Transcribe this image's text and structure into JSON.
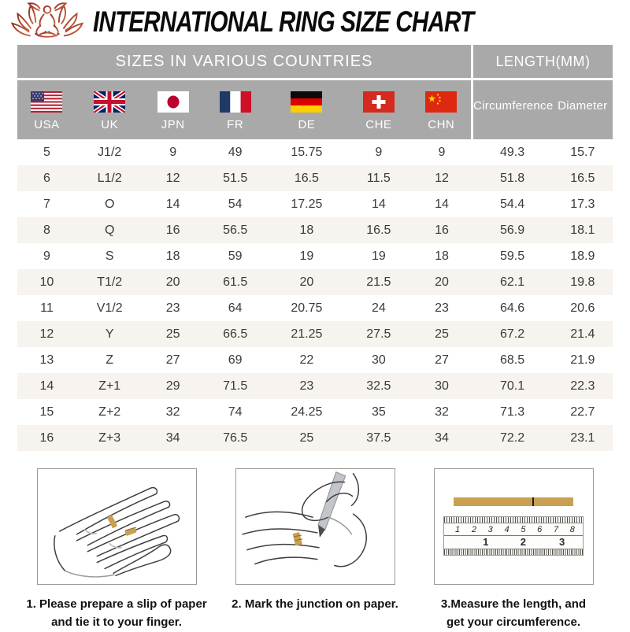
{
  "page": {
    "title": "INTERNATIONAL RING SIZE CHART"
  },
  "chart_data": {
    "type": "table",
    "title": "INTERNATIONAL RING SIZE CHART",
    "group_headers": {
      "countries": "SIZES IN VARIOUS COUNTRIES",
      "length": "LENGTH(MM)"
    },
    "columns": [
      "USA",
      "UK",
      "JPN",
      "FR",
      "DE",
      "CHE",
      "CHN",
      "Circumference",
      "Diameter"
    ],
    "rows": [
      [
        "5",
        "J1/2",
        "9",
        "49",
        "15.75",
        "9",
        "9",
        "49.3",
        "15.7"
      ],
      [
        "6",
        "L1/2",
        "12",
        "51.5",
        "16.5",
        "11.5",
        "12",
        "51.8",
        "16.5"
      ],
      [
        "7",
        "O",
        "14",
        "54",
        "17.25",
        "14",
        "14",
        "54.4",
        "17.3"
      ],
      [
        "8",
        "Q",
        "16",
        "56.5",
        "18",
        "16.5",
        "16",
        "56.9",
        "18.1"
      ],
      [
        "9",
        "S",
        "18",
        "59",
        "19",
        "19",
        "18",
        "59.5",
        "18.9"
      ],
      [
        "10",
        "T1/2",
        "20",
        "61.5",
        "20",
        "21.5",
        "20",
        "62.1",
        "19.8"
      ],
      [
        "11",
        "V1/2",
        "23",
        "64",
        "20.75",
        "24",
        "23",
        "64.6",
        "20.6"
      ],
      [
        "12",
        "Y",
        "25",
        "66.5",
        "21.25",
        "27.5",
        "25",
        "67.2",
        "21.4"
      ],
      [
        "13",
        "Z",
        "27",
        "69",
        "22",
        "30",
        "27",
        "68.5",
        "21.9"
      ],
      [
        "14",
        "Z+1",
        "29",
        "71.5",
        "23",
        "32.5",
        "30",
        "70.1",
        "22.3"
      ],
      [
        "15",
        "Z+2",
        "32",
        "74",
        "24.25",
        "35",
        "32",
        "71.3",
        "22.7"
      ],
      [
        "16",
        "Z+3",
        "34",
        "76.5",
        "25",
        "37.5",
        "34",
        "72.2",
        "23.1"
      ]
    ]
  },
  "flags": [
    "usa-flag",
    "uk-flag",
    "japan-flag",
    "france-flag",
    "germany-flag",
    "switzerland-flag",
    "china-flag"
  ],
  "instructions": [
    {
      "caption": "1. Please prepare a slip of paper and tie it to your finger."
    },
    {
      "caption": "2. Mark the junction on paper."
    },
    {
      "caption": "3.Measure the length, and get your circumference."
    }
  ],
  "ruler": {
    "cm_labels": [
      "1",
      "2",
      "3",
      "4",
      "5",
      "6",
      "7",
      "8"
    ],
    "inch_labels": [
      "1",
      "2",
      "3"
    ]
  },
  "colors": {
    "header_gray": "#a9a9a9",
    "stripe_beige": "#f7f3ee",
    "paper_gold": "#c9a052",
    "logo_brown": "#9c3f2b",
    "title_black": "#0b0b0b"
  }
}
